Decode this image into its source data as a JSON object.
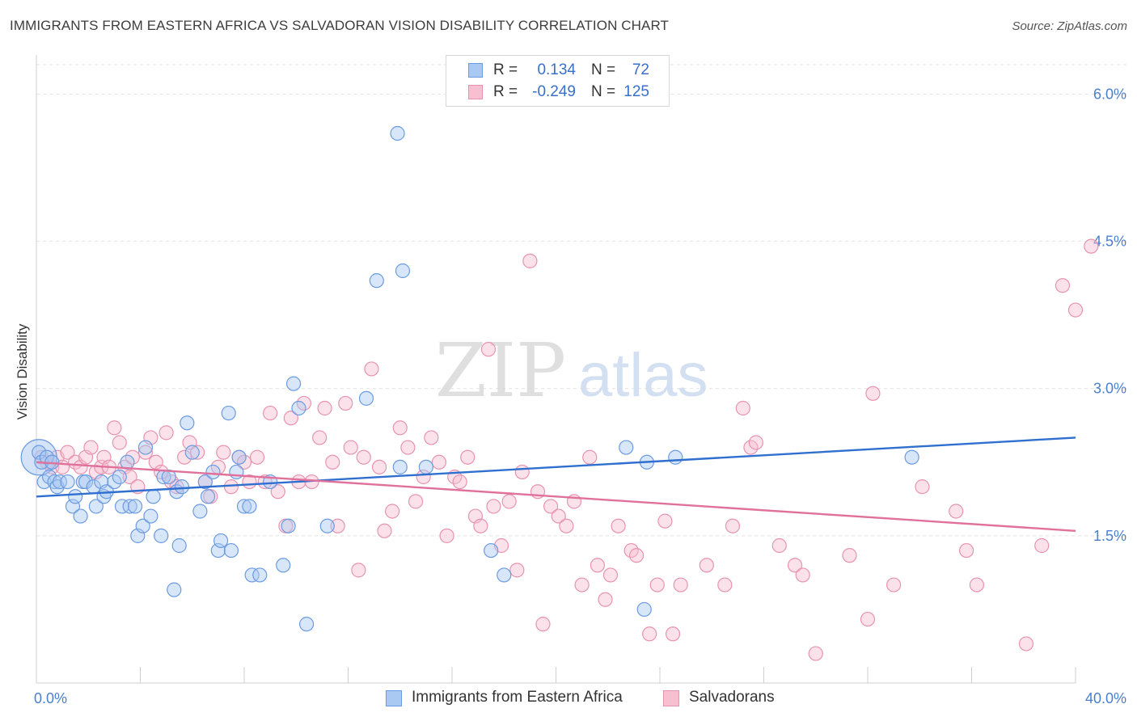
{
  "header": {
    "title": "IMMIGRANTS FROM EASTERN AFRICA VS SALVADORAN VISION DISABILITY CORRELATION CHART",
    "source": "Source: ZipAtlas.com"
  },
  "watermark": {
    "zip": "ZIP",
    "atlas": "atlas"
  },
  "legend": {
    "r_label": "R =",
    "n_label": "N =",
    "rows": [
      {
        "r": "0.134",
        "n": "72",
        "fill": "#a9c8f2",
        "stroke": "#6b9be0"
      },
      {
        "r": "-0.249",
        "n": "125",
        "fill": "#f7bfd0",
        "stroke": "#e793b0"
      }
    ]
  },
  "bottom_legend": [
    {
      "label": "Immigrants from Eastern Africa",
      "fill": "#a9c8f2",
      "stroke": "#6b9be0"
    },
    {
      "label": "Salvadorans",
      "fill": "#f7bfd0",
      "stroke": "#e793b0"
    }
  ],
  "chart_data": {
    "type": "scatter",
    "title": "IMMIGRANTS FROM EASTERN AFRICA VS SALVADORAN VISION DISABILITY CORRELATION CHART",
    "xlabel": "",
    "ylabel": "Vision Disability",
    "xlim": [
      0,
      40
    ],
    "ylim": [
      0,
      6.3
    ],
    "x_tick_labels": [
      "0.0%",
      "40.0%"
    ],
    "y_ticks": [
      1.5,
      3.0,
      4.5,
      6.0
    ],
    "y_tick_labels": [
      "1.5%",
      "3.0%",
      "4.5%",
      "6.0%"
    ],
    "grid": "horizontal dashed",
    "legend_placement": "top-center",
    "series": [
      {
        "name": "Immigrants from Eastern Africa",
        "color": "#6b9be0",
        "fill": "#a9c8f2",
        "trend_color": "#2f6fcf",
        "trend": [
          [
            0,
            1.9
          ],
          [
            40,
            2.5
          ]
        ],
        "points": [
          [
            0.1,
            2.35
          ],
          [
            0.2,
            2.25
          ],
          [
            0.3,
            2.05
          ],
          [
            0.4,
            2.3
          ],
          [
            0.5,
            2.1
          ],
          [
            0.6,
            2.25
          ],
          [
            0.7,
            2.05
          ],
          [
            0.8,
            2.0
          ],
          [
            0.9,
            2.05
          ],
          [
            1.2,
            2.05
          ],
          [
            1.4,
            1.8
          ],
          [
            1.5,
            1.9
          ],
          [
            1.7,
            1.7
          ],
          [
            1.8,
            2.05
          ],
          [
            1.9,
            2.05
          ],
          [
            2.2,
            2.0
          ],
          [
            2.3,
            1.8
          ],
          [
            2.5,
            2.05
          ],
          [
            2.6,
            1.9
          ],
          [
            2.7,
            1.95
          ],
          [
            3.0,
            2.05
          ],
          [
            3.2,
            2.1
          ],
          [
            3.3,
            1.8
          ],
          [
            3.5,
            2.25
          ],
          [
            3.6,
            1.8
          ],
          [
            3.8,
            1.8
          ],
          [
            3.9,
            1.5
          ],
          [
            4.1,
            1.6
          ],
          [
            4.2,
            2.4
          ],
          [
            4.4,
            1.7
          ],
          [
            4.5,
            1.9
          ],
          [
            4.8,
            1.5
          ],
          [
            4.9,
            2.1
          ],
          [
            5.1,
            2.1
          ],
          [
            5.3,
            0.95
          ],
          [
            5.4,
            1.95
          ],
          [
            5.5,
            1.4
          ],
          [
            5.6,
            2.0
          ],
          [
            5.8,
            2.65
          ],
          [
            6.0,
            2.35
          ],
          [
            6.3,
            1.75
          ],
          [
            6.5,
            2.05
          ],
          [
            6.6,
            1.9
          ],
          [
            6.8,
            2.15
          ],
          [
            7.0,
            1.35
          ],
          [
            7.1,
            1.45
          ],
          [
            7.4,
            2.75
          ],
          [
            7.5,
            1.35
          ],
          [
            7.7,
            2.15
          ],
          [
            7.8,
            2.3
          ],
          [
            8.0,
            1.8
          ],
          [
            8.2,
            1.8
          ],
          [
            8.3,
            1.1
          ],
          [
            8.6,
            1.1
          ],
          [
            9.0,
            2.05
          ],
          [
            9.5,
            1.2
          ],
          [
            9.7,
            1.6
          ],
          [
            9.9,
            3.05
          ],
          [
            10.1,
            2.8
          ],
          [
            10.4,
            0.6
          ],
          [
            11.2,
            1.6
          ],
          [
            12.7,
            2.9
          ],
          [
            13.1,
            4.1
          ],
          [
            13.9,
            5.6
          ],
          [
            14.0,
            2.2
          ],
          [
            14.1,
            4.2
          ],
          [
            15.0,
            2.2
          ],
          [
            17.5,
            1.35
          ],
          [
            18.0,
            1.1
          ],
          [
            22.7,
            2.4
          ],
          [
            23.4,
            0.75
          ],
          [
            23.5,
            2.25
          ],
          [
            24.6,
            2.3
          ],
          [
            33.7,
            2.3
          ]
        ],
        "big_point": [
          0.1,
          2.3
        ]
      },
      {
        "name": "Salvadorans",
        "color": "#e793b0",
        "fill": "#f7bfd0",
        "trend_color": "#e0719a",
        "trend": [
          [
            0,
            2.25
          ],
          [
            40,
            1.55
          ]
        ],
        "points": [
          [
            0.2,
            2.3
          ],
          [
            0.4,
            2.25
          ],
          [
            0.6,
            2.2
          ],
          [
            0.8,
            2.3
          ],
          [
            1.0,
            2.2
          ],
          [
            1.2,
            2.35
          ],
          [
            1.5,
            2.25
          ],
          [
            1.7,
            2.2
          ],
          [
            1.9,
            2.3
          ],
          [
            2.1,
            2.4
          ],
          [
            2.3,
            2.15
          ],
          [
            2.5,
            2.2
          ],
          [
            2.6,
            2.3
          ],
          [
            2.8,
            2.2
          ],
          [
            3.0,
            2.6
          ],
          [
            3.2,
            2.45
          ],
          [
            3.4,
            2.2
          ],
          [
            3.6,
            2.1
          ],
          [
            3.7,
            2.3
          ],
          [
            3.9,
            2.0
          ],
          [
            4.2,
            2.35
          ],
          [
            4.4,
            2.5
          ],
          [
            4.6,
            2.25
          ],
          [
            4.8,
            2.15
          ],
          [
            5.0,
            2.55
          ],
          [
            5.2,
            2.05
          ],
          [
            5.4,
            2.0
          ],
          [
            5.7,
            2.3
          ],
          [
            5.9,
            2.45
          ],
          [
            6.2,
            2.35
          ],
          [
            6.5,
            2.05
          ],
          [
            6.7,
            1.9
          ],
          [
            7.0,
            2.2
          ],
          [
            7.2,
            2.35
          ],
          [
            7.5,
            2.0
          ],
          [
            7.8,
            2.3
          ],
          [
            8.0,
            2.25
          ],
          [
            8.2,
            2.05
          ],
          [
            8.5,
            2.3
          ],
          [
            8.8,
            2.05
          ],
          [
            9.0,
            2.75
          ],
          [
            9.3,
            1.95
          ],
          [
            9.6,
            1.6
          ],
          [
            9.8,
            2.7
          ],
          [
            10.1,
            2.05
          ],
          [
            10.3,
            2.85
          ],
          [
            10.6,
            2.05
          ],
          [
            10.9,
            2.5
          ],
          [
            11.1,
            2.8
          ],
          [
            11.4,
            2.25
          ],
          [
            11.6,
            1.6
          ],
          [
            11.9,
            2.85
          ],
          [
            12.1,
            2.4
          ],
          [
            12.4,
            1.15
          ],
          [
            12.6,
            2.3
          ],
          [
            12.9,
            3.2
          ],
          [
            13.2,
            2.2
          ],
          [
            13.4,
            1.55
          ],
          [
            13.7,
            1.75
          ],
          [
            14.0,
            2.6
          ],
          [
            14.3,
            2.4
          ],
          [
            14.6,
            1.85
          ],
          [
            14.9,
            2.1
          ],
          [
            15.2,
            2.5
          ],
          [
            15.5,
            2.25
          ],
          [
            15.8,
            1.5
          ],
          [
            16.1,
            2.1
          ],
          [
            16.3,
            2.05
          ],
          [
            16.6,
            2.3
          ],
          [
            16.9,
            1.7
          ],
          [
            17.1,
            1.6
          ],
          [
            17.4,
            3.4
          ],
          [
            17.6,
            1.8
          ],
          [
            17.9,
            1.4
          ],
          [
            18.2,
            1.85
          ],
          [
            18.5,
            1.15
          ],
          [
            18.7,
            2.15
          ],
          [
            19.0,
            4.3
          ],
          [
            19.3,
            1.95
          ],
          [
            19.5,
            0.6
          ],
          [
            19.8,
            1.8
          ],
          [
            20.1,
            1.7
          ],
          [
            20.4,
            1.6
          ],
          [
            20.7,
            1.85
          ],
          [
            21.0,
            1.0
          ],
          [
            21.3,
            2.3
          ],
          [
            21.6,
            1.2
          ],
          [
            21.9,
            0.85
          ],
          [
            22.1,
            1.1
          ],
          [
            22.4,
            1.6
          ],
          [
            22.9,
            1.35
          ],
          [
            23.1,
            1.3
          ],
          [
            23.6,
            0.5
          ],
          [
            23.9,
            1.0
          ],
          [
            24.2,
            1.65
          ],
          [
            24.5,
            0.5
          ],
          [
            24.8,
            1.0
          ],
          [
            25.8,
            1.2
          ],
          [
            26.5,
            1.0
          ],
          [
            26.8,
            1.6
          ],
          [
            27.2,
            2.8
          ],
          [
            27.5,
            2.4
          ],
          [
            27.7,
            2.45
          ],
          [
            28.6,
            1.4
          ],
          [
            29.2,
            1.2
          ],
          [
            29.5,
            1.1
          ],
          [
            30.0,
            0.3
          ],
          [
            31.3,
            1.3
          ],
          [
            32.0,
            0.65
          ],
          [
            32.2,
            2.95
          ],
          [
            33.0,
            1.0
          ],
          [
            34.1,
            2.0
          ],
          [
            35.4,
            1.75
          ],
          [
            35.8,
            1.35
          ],
          [
            36.2,
            1.0
          ],
          [
            38.1,
            0.4
          ],
          [
            38.7,
            1.4
          ],
          [
            39.5,
            4.05
          ],
          [
            40.0,
            3.8
          ],
          [
            40.6,
            4.45
          ]
        ]
      }
    ]
  }
}
